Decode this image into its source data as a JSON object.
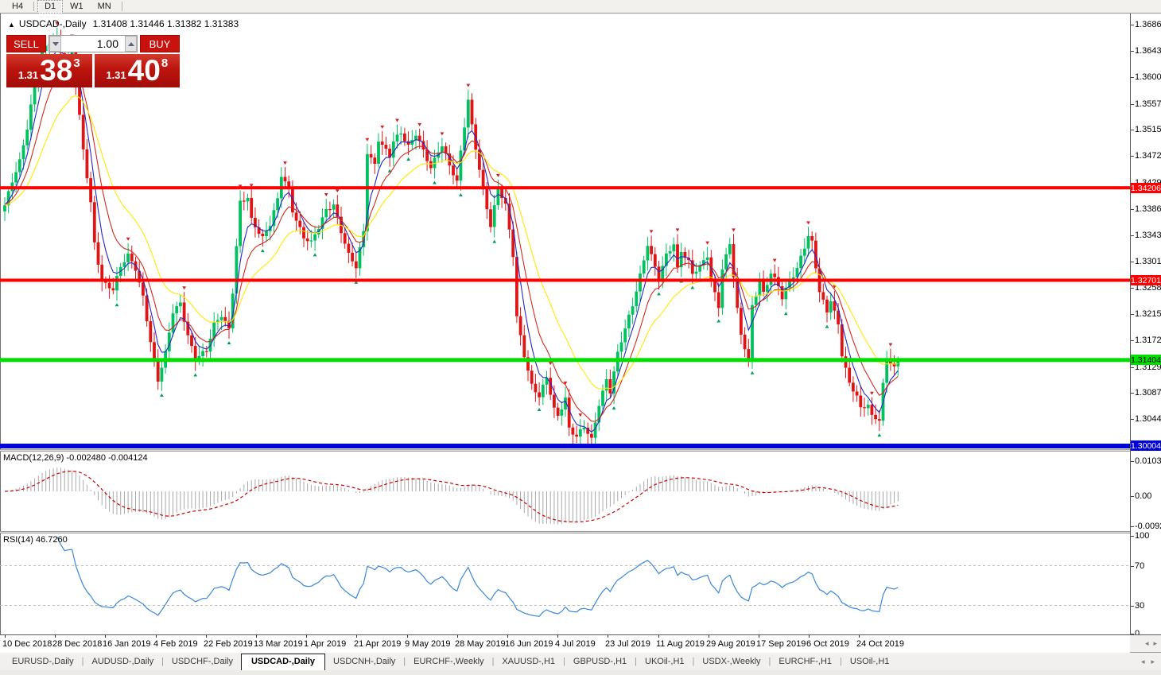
{
  "toolbar": {
    "timeframes": [
      {
        "label": "H4",
        "active": false
      },
      {
        "label": "D1",
        "active": true
      },
      {
        "label": "W1",
        "active": false
      },
      {
        "label": "MN",
        "active": false
      }
    ]
  },
  "chart_header": {
    "collapse_icon": "▲",
    "symbol_title": "USDCAD-,Daily",
    "ohlc": "1.31408 1.31446 1.31382 1.31383"
  },
  "trade_panel": {
    "sell_button": "SELL",
    "buy_button": "BUY",
    "volume_value": "1.00",
    "sell_price": {
      "prefix": "1.31",
      "big": "38",
      "sup": "3"
    },
    "buy_price": {
      "prefix": "1.31",
      "big": "40",
      "sup": "8"
    }
  },
  "chart_data": {
    "type": "candlestick",
    "symbol": "USDCAD-",
    "timeframe": "Daily",
    "ohlc_display": {
      "open": "1.31408",
      "high": "1.31446",
      "low": "1.31382",
      "close": "1.31383"
    },
    "bull_color": "#00c060",
    "bear_color": "#e01414",
    "price_axis": {
      "ticks": [
        "1.36860",
        "1.36430",
        "1.36000",
        "1.35570",
        "1.35150",
        "1.34720",
        "1.34290",
        "1.33860",
        "1.33430",
        "1.33010",
        "1.32580",
        "1.32150",
        "1.31720",
        "1.31290",
        "1.30870",
        "1.30440"
      ]
    },
    "hlines": [
      {
        "value": 1.34206,
        "label": "1.34206",
        "color": "#ff0000",
        "text_color": "#ffffff",
        "thickness": 4
      },
      {
        "value": 1.32701,
        "label": "1.32701",
        "color": "#ff0000",
        "text_color": "#ffffff",
        "thickness": 4
      },
      {
        "value": 1.31404,
        "label": "1.31404",
        "color": "#00e000",
        "text_color": "#000000",
        "thickness": 5
      },
      {
        "value": 1.30004,
        "label": "1.30004",
        "color": "#0000d8",
        "text_color": "#ffffff",
        "thickness": 6
      }
    ],
    "n_candles": 240,
    "close_anchors": [
      [
        0,
        1.339
      ],
      [
        2,
        1.343
      ],
      [
        4,
        1.3465
      ],
      [
        6,
        1.352
      ],
      [
        8,
        1.359
      ],
      [
        10,
        1.364
      ],
      [
        12,
        1.3655
      ],
      [
        14,
        1.3662
      ],
      [
        16,
        1.3625
      ],
      [
        18,
        1.3645
      ],
      [
        19,
        1.359
      ],
      [
        21,
        1.348
      ],
      [
        23,
        1.3395
      ],
      [
        24,
        1.333
      ],
      [
        26,
        1.327
      ],
      [
        29,
        1.3255
      ],
      [
        31,
        1.329
      ],
      [
        33,
        1.331
      ],
      [
        35,
        1.329
      ],
      [
        37,
        1.3245
      ],
      [
        39,
        1.317
      ],
      [
        41,
        1.3105
      ],
      [
        43,
        1.315
      ],
      [
        45,
        1.322
      ],
      [
        47,
        1.3235
      ],
      [
        49,
        1.318
      ],
      [
        51,
        1.314
      ],
      [
        54,
        1.3155
      ],
      [
        56,
        1.32
      ],
      [
        58,
        1.3215
      ],
      [
        60,
        1.319
      ],
      [
        61,
        1.325
      ],
      [
        63,
        1.3395
      ],
      [
        65,
        1.3405
      ],
      [
        66,
        1.337
      ],
      [
        69,
        1.334
      ],
      [
        71,
        1.336
      ],
      [
        73,
        1.34
      ],
      [
        74,
        1.344
      ],
      [
        76,
        1.342
      ],
      [
        77,
        1.3385
      ],
      [
        80,
        1.334
      ],
      [
        82,
        1.333
      ],
      [
        84,
        1.3355
      ],
      [
        86,
        1.3385
      ],
      [
        88,
        1.3395
      ],
      [
        90,
        1.335
      ],
      [
        92,
        1.331
      ],
      [
        94,
        1.329
      ],
      [
        96,
        1.335
      ],
      [
        97,
        1.348
      ],
      [
        99,
        1.346
      ],
      [
        100,
        1.35
      ],
      [
        103,
        1.347
      ],
      [
        104,
        1.3495
      ],
      [
        106,
        1.351
      ],
      [
        108,
        1.349
      ],
      [
        110,
        1.351
      ],
      [
        112,
        1.348
      ],
      [
        114,
        1.345
      ],
      [
        116,
        1.348
      ],
      [
        117,
        1.349
      ],
      [
        119,
        1.346
      ],
      [
        121,
        1.343
      ],
      [
        122,
        1.348
      ],
      [
        124,
        1.356
      ],
      [
        125,
        1.352
      ],
      [
        127,
        1.345
      ],
      [
        129,
        1.339
      ],
      [
        130,
        1.336
      ],
      [
        132,
        1.342
      ],
      [
        134,
        1.339
      ],
      [
        136,
        1.331
      ],
      [
        137,
        1.321
      ],
      [
        139,
        1.315
      ],
      [
        141,
        1.31
      ],
      [
        143,
        1.308
      ],
      [
        145,
        1.311
      ],
      [
        147,
        1.306
      ],
      [
        148,
        1.305
      ],
      [
        150,
        1.308
      ],
      [
        151,
        1.303
      ],
      [
        153,
        1.3015
      ],
      [
        155,
        1.303
      ],
      [
        157,
        1.301
      ],
      [
        159,
        1.307
      ],
      [
        161,
        1.311
      ],
      [
        162,
        1.309
      ],
      [
        164,
        1.315
      ],
      [
        166,
        1.319
      ],
      [
        168,
        1.323
      ],
      [
        170,
        1.328
      ],
      [
        172,
        1.333
      ],
      [
        174,
        1.329
      ],
      [
        175,
        1.327
      ],
      [
        177,
        1.331
      ],
      [
        179,
        1.333
      ],
      [
        180,
        1.329
      ],
      [
        181,
        1.332
      ],
      [
        183,
        1.33
      ],
      [
        184,
        1.328
      ],
      [
        186,
        1.329
      ],
      [
        188,
        1.331
      ],
      [
        189,
        1.327
      ],
      [
        191,
        1.323
      ],
      [
        192,
        1.329
      ],
      [
        194,
        1.333
      ],
      [
        196,
        1.322
      ],
      [
        197,
        1.318
      ],
      [
        199,
        1.314
      ],
      [
        200,
        1.323
      ],
      [
        202,
        1.327
      ],
      [
        203,
        1.325
      ],
      [
        205,
        1.328
      ],
      [
        207,
        1.326
      ],
      [
        208,
        1.324
      ],
      [
        210,
        1.327
      ],
      [
        212,
        1.329
      ],
      [
        213,
        1.331
      ],
      [
        215,
        1.334
      ],
      [
        216,
        1.333
      ],
      [
        218,
        1.325
      ],
      [
        220,
        1.322
      ],
      [
        221,
        1.324
      ],
      [
        223,
        1.32
      ],
      [
        224,
        1.315
      ],
      [
        226,
        1.31
      ],
      [
        228,
        1.308
      ],
      [
        229,
        1.306
      ],
      [
        231,
        1.307
      ],
      [
        232,
        1.305
      ],
      [
        234,
        1.3045
      ],
      [
        235,
        1.31
      ],
      [
        236,
        1.314
      ],
      [
        238,
        1.313
      ],
      [
        239,
        1.31383
      ]
    ],
    "moving_averages": [
      {
        "name": "fast-ma",
        "period": 5,
        "color": "#2326c8"
      },
      {
        "name": "medium-ma",
        "period": 10,
        "color": "#d02a1e"
      },
      {
        "name": "slow-ma",
        "period": 21,
        "color": "#ffe800"
      }
    ],
    "fractal_up_color": "#d42020",
    "fractal_down_color": "#00a050",
    "date_labels": [
      "10 Dec 2018",
      "28 Dec 2018",
      "16 Jan 2019",
      "4 Feb 2019",
      "22 Feb 2019",
      "13 Mar 2019",
      "1 Apr 2019",
      "21 Apr 2019",
      "9 May 2019",
      "28 May 2019",
      "16 Jun 2019",
      "4 Jul 2019",
      "23 Jul 2019",
      "11 Aug 2019",
      "29 Aug 2019",
      "17 Sep 2019",
      "6 Oct 2019",
      "24 Oct 2019"
    ],
    "macd": {
      "label": "MACD(12,26,9)",
      "value_1": "-0.002480",
      "value_2": "-0.004124",
      "fast": 12,
      "slow": 26,
      "signal": 9,
      "axis_labels": [
        "0.010311",
        "0.00",
        "-0.009203"
      ],
      "hist_color": "#a8a8a8",
      "signal_color": "#cc0000"
    },
    "rsi": {
      "label": "RSI(14)",
      "value": "46.7260",
      "period": 14,
      "levels": [
        "100",
        "70",
        "30",
        "0"
      ],
      "overbought": 70,
      "oversold": 30,
      "line_color": "#3a87d9",
      "level_line_color": "#bdbdbd"
    }
  },
  "scrollers": {
    "left_icon": "◂",
    "right_icon": "▸"
  },
  "bottom_tabs": {
    "items": [
      "EURUSD-,Daily",
      "AUDUSD-,Daily",
      "USDCHF-,Daily",
      "USDCAD-,Daily",
      "USDCNH-,Daily",
      "EURCHF-,Weekly",
      "XAUUSD-,H1",
      "GBPUSD-,H1",
      "UKOil-,H1",
      "USDX-,Weekly",
      "EURCHF-,H1",
      "USOil-,H1"
    ],
    "active_index": 3
  }
}
